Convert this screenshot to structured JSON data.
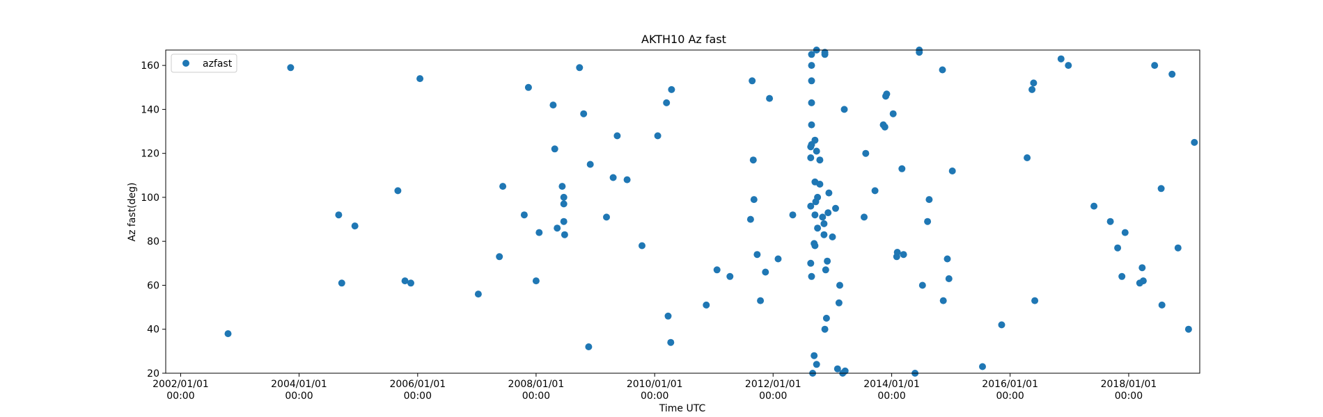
{
  "chart_data": {
    "type": "scatter",
    "title": "AKTH10 Az fast",
    "xlabel": "Time UTC",
    "ylabel": "Az fast(deg)",
    "x_axis_kind": "date",
    "xlim": [
      "2001-10-01",
      "2019-03-15"
    ],
    "ylim": [
      20,
      167
    ],
    "x_tick_labels": [
      [
        "2002/01/01",
        "00:00"
      ],
      [
        "2004/01/01",
        "00:00"
      ],
      [
        "2006/01/01",
        "00:00"
      ],
      [
        "2008/01/01",
        "00:00"
      ],
      [
        "2010/01/01",
        "00:00"
      ],
      [
        "2012/01/01",
        "00:00"
      ],
      [
        "2014/01/01",
        "00:00"
      ],
      [
        "2016/01/01",
        "00:00"
      ],
      [
        "2018/01/01",
        "00:00"
      ]
    ],
    "x_tick_dates": [
      "2002-01-01",
      "2004-01-01",
      "2006-01-01",
      "2008-01-01",
      "2010-01-01",
      "2012-01-01",
      "2014-01-01",
      "2016-01-01",
      "2018-01-01"
    ],
    "y_ticks": [
      20,
      40,
      60,
      80,
      100,
      120,
      140,
      160
    ],
    "grid": false,
    "legend_position": "top-left",
    "series": [
      {
        "name": "azfast",
        "color": "#1f77b4",
        "marker": "circle",
        "points": [
          [
            "2002-10-20",
            38
          ],
          [
            "2003-11-10",
            159
          ],
          [
            "2004-09-01",
            92
          ],
          [
            "2004-09-20",
            61
          ],
          [
            "2004-12-10",
            87
          ],
          [
            "2005-09-01",
            103
          ],
          [
            "2005-10-15",
            62
          ],
          [
            "2005-11-20",
            61
          ],
          [
            "2006-01-15",
            154
          ],
          [
            "2007-01-10",
            56
          ],
          [
            "2007-05-20",
            73
          ],
          [
            "2007-06-10",
            105
          ],
          [
            "2007-10-20",
            92
          ],
          [
            "2007-11-15",
            150
          ],
          [
            "2008-01-01",
            62
          ],
          [
            "2008-01-20",
            84
          ],
          [
            "2008-04-15",
            142
          ],
          [
            "2008-04-25",
            122
          ],
          [
            "2008-05-10",
            86
          ],
          [
            "2008-06-10",
            105
          ],
          [
            "2008-06-20",
            100
          ],
          [
            "2008-06-20",
            97
          ],
          [
            "2008-06-20",
            89
          ],
          [
            "2008-06-25",
            83
          ],
          [
            "2008-09-25",
            159
          ],
          [
            "2008-10-20",
            138
          ],
          [
            "2008-11-20",
            32
          ],
          [
            "2008-11-30",
            115
          ],
          [
            "2009-03-10",
            91
          ],
          [
            "2009-04-20",
            109
          ],
          [
            "2009-05-15",
            128
          ],
          [
            "2009-07-15",
            108
          ],
          [
            "2009-10-15",
            78
          ],
          [
            "2010-01-20",
            128
          ],
          [
            "2010-03-15",
            143
          ],
          [
            "2010-03-25",
            46
          ],
          [
            "2010-04-10",
            34
          ],
          [
            "2010-04-15",
            149
          ],
          [
            "2010-11-15",
            51
          ],
          [
            "2011-01-20",
            67
          ],
          [
            "2011-04-10",
            64
          ],
          [
            "2011-08-15",
            90
          ],
          [
            "2011-08-25",
            153
          ],
          [
            "2011-09-01",
            117
          ],
          [
            "2011-09-05",
            99
          ],
          [
            "2011-09-25",
            74
          ],
          [
            "2011-10-15",
            53
          ],
          [
            "2011-11-15",
            66
          ],
          [
            "2011-12-10",
            145
          ],
          [
            "2012-02-01",
            72
          ],
          [
            "2012-05-01",
            92
          ],
          [
            "2012-08-20",
            123
          ],
          [
            "2012-08-20",
            118
          ],
          [
            "2012-08-20",
            96
          ],
          [
            "2012-08-20",
            70
          ],
          [
            "2012-08-25",
            165
          ],
          [
            "2012-08-25",
            160
          ],
          [
            "2012-08-25",
            153
          ],
          [
            "2012-08-25",
            143
          ],
          [
            "2012-08-25",
            133
          ],
          [
            "2012-08-25",
            124
          ],
          [
            "2012-08-25",
            64
          ],
          [
            "2012-09-01",
            20
          ],
          [
            "2012-09-10",
            28
          ],
          [
            "2012-09-10",
            79
          ],
          [
            "2012-09-15",
            126
          ],
          [
            "2012-09-15",
            107
          ],
          [
            "2012-09-15",
            92
          ],
          [
            "2012-09-15",
            78
          ],
          [
            "2012-09-20",
            98
          ],
          [
            "2012-09-25",
            121
          ],
          [
            "2012-09-25",
            167
          ],
          [
            "2012-09-25",
            24
          ],
          [
            "2012-10-01",
            100
          ],
          [
            "2012-10-01",
            86
          ],
          [
            "2012-10-15",
            117
          ],
          [
            "2012-10-15",
            106
          ],
          [
            "2012-11-01",
            91
          ],
          [
            "2012-11-10",
            88
          ],
          [
            "2012-11-10",
            83
          ],
          [
            "2012-11-15",
            165
          ],
          [
            "2012-11-15",
            166
          ],
          [
            "2012-11-15",
            40
          ],
          [
            "2012-11-20",
            67
          ],
          [
            "2012-11-25",
            45
          ],
          [
            "2012-11-30",
            71
          ],
          [
            "2012-12-05",
            93
          ],
          [
            "2012-12-10",
            102
          ],
          [
            "2013-01-01",
            82
          ],
          [
            "2013-01-20",
            95
          ],
          [
            "2013-02-01",
            22
          ],
          [
            "2013-02-10",
            52
          ],
          [
            "2013-02-15",
            60
          ],
          [
            "2013-03-05",
            20
          ],
          [
            "2013-03-15",
            140
          ],
          [
            "2013-03-20",
            21
          ],
          [
            "2013-07-15",
            91
          ],
          [
            "2013-07-25",
            120
          ],
          [
            "2013-09-20",
            103
          ],
          [
            "2013-11-10",
            133
          ],
          [
            "2013-11-20",
            132
          ],
          [
            "2013-11-25",
            146
          ],
          [
            "2013-12-01",
            147
          ],
          [
            "2014-01-10",
            138
          ],
          [
            "2014-02-01",
            73
          ],
          [
            "2014-02-05",
            75
          ],
          [
            "2014-03-05",
            113
          ],
          [
            "2014-03-15",
            74
          ],
          [
            "2014-05-25",
            20
          ],
          [
            "2014-06-20",
            166
          ],
          [
            "2014-06-20",
            167
          ],
          [
            "2014-07-10",
            60
          ],
          [
            "2014-08-10",
            89
          ],
          [
            "2014-08-20",
            99
          ],
          [
            "2014-11-10",
            158
          ],
          [
            "2014-11-15",
            53
          ],
          [
            "2014-12-10",
            72
          ],
          [
            "2014-12-20",
            63
          ],
          [
            "2015-01-10",
            112
          ],
          [
            "2015-07-15",
            23
          ],
          [
            "2015-11-10",
            42
          ],
          [
            "2016-04-15",
            118
          ],
          [
            "2016-05-15",
            149
          ],
          [
            "2016-05-25",
            152
          ],
          [
            "2016-06-01",
            53
          ],
          [
            "2016-11-10",
            163
          ],
          [
            "2016-12-25",
            160
          ],
          [
            "2017-06-01",
            96
          ],
          [
            "2017-09-10",
            89
          ],
          [
            "2017-10-25",
            77
          ],
          [
            "2017-11-20",
            64
          ],
          [
            "2017-12-10",
            84
          ],
          [
            "2018-03-10",
            61
          ],
          [
            "2018-03-25",
            68
          ],
          [
            "2018-04-01",
            62
          ],
          [
            "2018-06-10",
            160
          ],
          [
            "2018-07-20",
            104
          ],
          [
            "2018-07-25",
            51
          ],
          [
            "2018-09-25",
            156
          ],
          [
            "2018-11-01",
            77
          ],
          [
            "2019-01-05",
            40
          ],
          [
            "2019-02-10",
            125
          ]
        ]
      }
    ]
  }
}
